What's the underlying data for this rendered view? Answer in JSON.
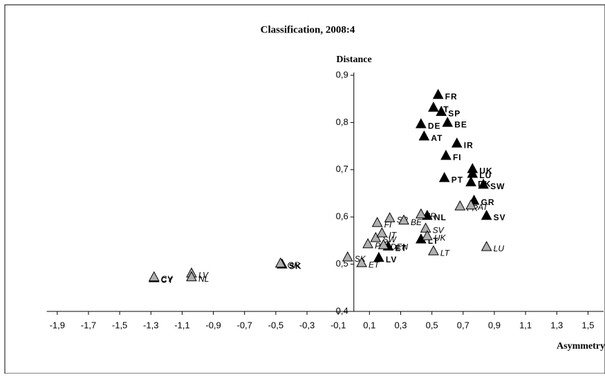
{
  "chart_data": {
    "type": "scatter",
    "title": "Classification, 2008:4",
    "x_label": "Asymmetry",
    "y_label": "Distance",
    "xlim": [
      -1.95,
      1.6
    ],
    "ylim": [
      0.4,
      0.9
    ],
    "xticks": [
      {
        "value": -1.9,
        "label": "-1,9"
      },
      {
        "value": -1.7,
        "label": "-1,7"
      },
      {
        "value": -1.5,
        "label": "-1,5"
      },
      {
        "value": -1.3,
        "label": "-1,3"
      },
      {
        "value": -1.1,
        "label": "-1,1"
      },
      {
        "value": -0.9,
        "label": "-0,9"
      },
      {
        "value": -0.7,
        "label": "-0,7"
      },
      {
        "value": -0.5,
        "label": "-0,5"
      },
      {
        "value": -0.3,
        "label": "-0,3"
      },
      {
        "value": -0.1,
        "label": "-0,1"
      },
      {
        "value": 0.1,
        "label": "0,1"
      },
      {
        "value": 0.3,
        "label": "0,3"
      },
      {
        "value": 0.5,
        "label": "0,5"
      },
      {
        "value": 0.7,
        "label": "0,7"
      },
      {
        "value": 0.9,
        "label": "0,9"
      },
      {
        "value": 1.1,
        "label": "1,1"
      },
      {
        "value": 1.3,
        "label": "1,3"
      },
      {
        "value": 1.5,
        "label": "1,5"
      }
    ],
    "yticks": [
      {
        "value": 0.4,
        "label": "0,4"
      },
      {
        "value": 0.5,
        "label": "0,5"
      },
      {
        "value": 0.6,
        "label": "0,6"
      },
      {
        "value": 0.7,
        "label": "0,7"
      },
      {
        "value": 0.8,
        "label": "0,8"
      },
      {
        "value": 0.9,
        "label": "0,9"
      }
    ],
    "series": [
      {
        "color": "#000000",
        "labels": [
          "FR",
          "IT",
          "SP",
          "BE",
          "DE",
          "AT",
          "IR",
          "FI",
          "UK",
          "LU",
          "PT",
          "SW",
          "DK",
          "GR",
          "SV",
          "NL",
          "LV",
          "ET",
          "LT",
          "SK",
          "CY"
        ],
        "x": [
          0.54,
          0.51,
          0.56,
          0.6,
          0.43,
          0.45,
          0.66,
          0.59,
          0.76,
          0.76,
          0.58,
          0.83,
          0.75,
          0.77,
          0.85,
          0.47,
          0.16,
          0.22,
          0.43,
          -0.46,
          -1.28
        ],
        "values": [
          0.858,
          0.831,
          0.822,
          0.799,
          0.796,
          0.77,
          0.755,
          0.729,
          0.701,
          0.691,
          0.682,
          0.668,
          0.673,
          0.634,
          0.602,
          0.602,
          0.513,
          0.537,
          0.552,
          0.499,
          0.47
        ]
      },
      {
        "color": "#b0b0b0",
        "labels": [
          "CY",
          "LV",
          "NL",
          "GR",
          "SK",
          "ET",
          "PT",
          "SW",
          "FI",
          "IT",
          "SP",
          "DEN",
          "BE",
          "IR",
          "SV",
          "UK",
          "LT",
          "FR",
          "AT",
          "LU"
        ],
        "x": [
          -1.28,
          -1.04,
          -1.04,
          -0.47,
          -0.04,
          0.05,
          0.09,
          0.14,
          0.15,
          0.18,
          0.23,
          0.19,
          0.32,
          0.43,
          0.46,
          0.47,
          0.51,
          0.68,
          0.75,
          0.85
        ],
        "values": [
          0.472,
          0.48,
          0.472,
          0.501,
          0.514,
          0.502,
          0.542,
          0.555,
          0.587,
          0.565,
          0.597,
          0.54,
          0.592,
          0.605,
          0.575,
          0.559,
          0.527,
          0.622,
          0.624,
          0.536
        ]
      }
    ]
  }
}
